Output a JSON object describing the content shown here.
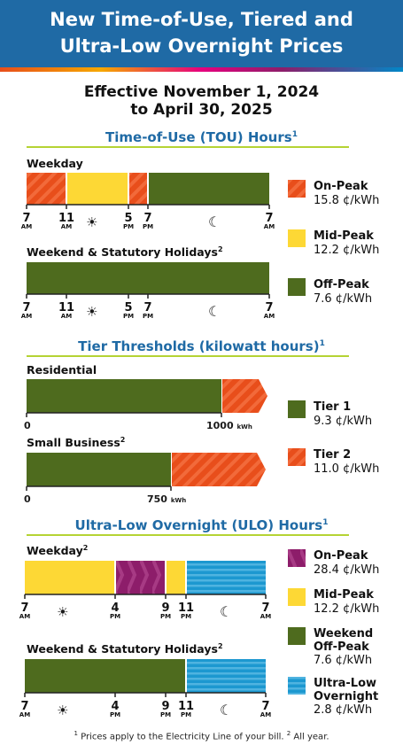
{
  "header": {
    "title_line1": "New Time-of-Use, Tiered and",
    "title_line2": "Ultra-Low Overnight Prices"
  },
  "effective": {
    "line1": "Effective November 1, 2024",
    "line2": "to April 30, 2025"
  },
  "tou": {
    "heading": "Time-of-Use (TOU) Hours",
    "heading_sup": "1",
    "weekday_label": "Weekday",
    "weekend_label": "Weekend & Statutory Holidays",
    "weekend_sup": "2",
    "ticks": [
      {
        "num": "7",
        "ampm": "AM"
      },
      {
        "num": "11",
        "ampm": "AM"
      },
      {
        "num": "5",
        "ampm": "PM"
      },
      {
        "num": "7",
        "ampm": "PM"
      },
      {
        "num": "7",
        "ampm": "AM"
      }
    ],
    "legend": [
      {
        "name": "On-Peak",
        "price": "15.8 ¢/kWh",
        "color": "#e84e1b",
        "striped": true
      },
      {
        "name": "Mid-Peak",
        "price": "12.2 ¢/kWh",
        "color": "#fdd835",
        "striped": false
      },
      {
        "name": "Off-Peak",
        "price": "7.6 ¢/kWh",
        "color": "#4e6b1e",
        "striped": false
      }
    ]
  },
  "tier": {
    "heading": "Tier Thresholds (kilowatt hours)",
    "heading_sup": "1",
    "residential_label": "Residential",
    "residential_threshold": "1000",
    "residential_zero": "0",
    "business_label": "Small Business",
    "business_sup": "2",
    "business_threshold": "750",
    "business_zero": "0",
    "unit": "kWh",
    "legend": [
      {
        "name": "Tier 1",
        "price": "9.3 ¢/kWh",
        "color": "#4e6b1e"
      },
      {
        "name": "Tier 2",
        "price": "11.0 ¢/kWh",
        "color": "#e84e1b"
      }
    ]
  },
  "ulo": {
    "heading": "Ultra-Low Overnight (ULO) Hours",
    "heading_sup": "1",
    "weekday_label": "Weekday",
    "weekday_sup": "2",
    "weekend_label": "Weekend & Statutory Holidays",
    "weekend_sup": "2",
    "ticks": [
      {
        "num": "7",
        "ampm": "AM"
      },
      {
        "num": "4",
        "ampm": "PM"
      },
      {
        "num": "9",
        "ampm": "PM"
      },
      {
        "num": "11",
        "ampm": "PM"
      },
      {
        "num": "7",
        "ampm": "AM"
      }
    ],
    "legend": [
      {
        "name": "On-Peak",
        "price": "28.4 ¢/kWh",
        "color": "#8d1d6a"
      },
      {
        "name": "Mid-Peak",
        "price": "12.2 ¢/kWh",
        "color": "#fdd835"
      },
      {
        "name_line1": "Weekend",
        "name_line2": "Off-Peak",
        "price": "7.6 ¢/kWh",
        "color": "#4e6b1e"
      },
      {
        "name_line1": "Ultra-Low",
        "name_line2": "Overnight",
        "price": "2.8 ¢/kWh",
        "color": "#1c98d0"
      }
    ]
  },
  "footnote": {
    "sup1": "1",
    "text1": " Prices apply to the Electricity Line of your bill. ",
    "sup2": "2",
    "text2": " All year."
  }
}
